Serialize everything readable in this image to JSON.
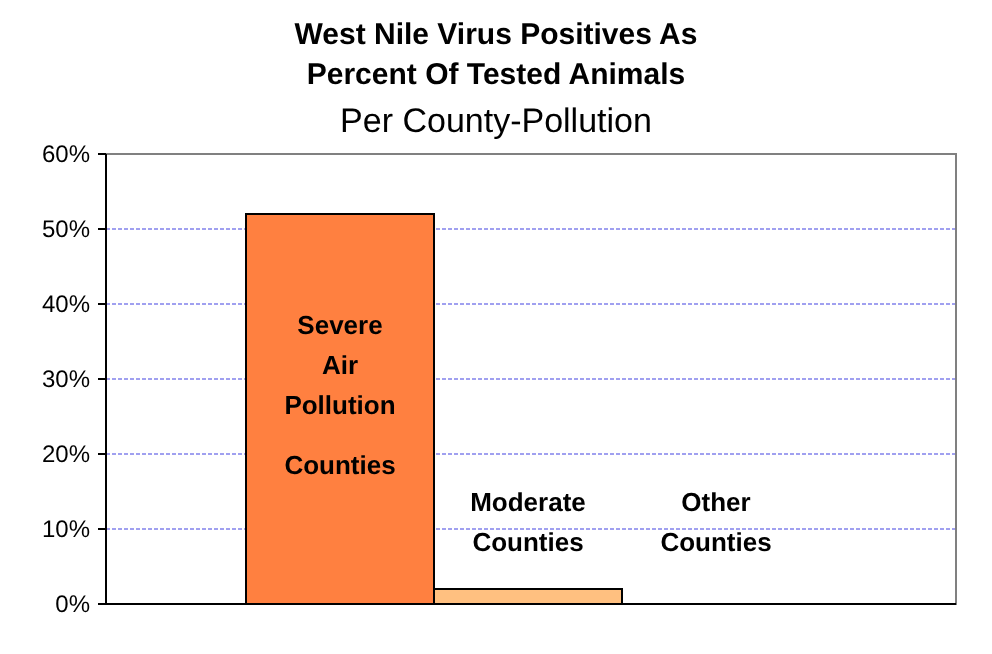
{
  "chart_data": {
    "type": "bar",
    "title": "West Nile Virus Positives As Percent Of Tested Animals",
    "subtitle": "Per County-Pollution",
    "categories": [
      "Severe Air Pollution Counties",
      "Moderate Counties",
      "Other Counties"
    ],
    "values": [
      52,
      2,
      0
    ],
    "colors": [
      "#ff8040",
      "#ffc080",
      "#ffc080"
    ],
    "ylim": [
      0,
      60
    ],
    "yticks": [
      {
        "value": 0,
        "label": "0%"
      },
      {
        "value": 10,
        "label": "10%"
      },
      {
        "value": 20,
        "label": "20%"
      },
      {
        "value": 30,
        "label": "30%"
      },
      {
        "value": 40,
        "label": "40%"
      },
      {
        "value": 50,
        "label": "50%"
      },
      {
        "value": 60,
        "label": "60%"
      }
    ],
    "grid": "y"
  }
}
